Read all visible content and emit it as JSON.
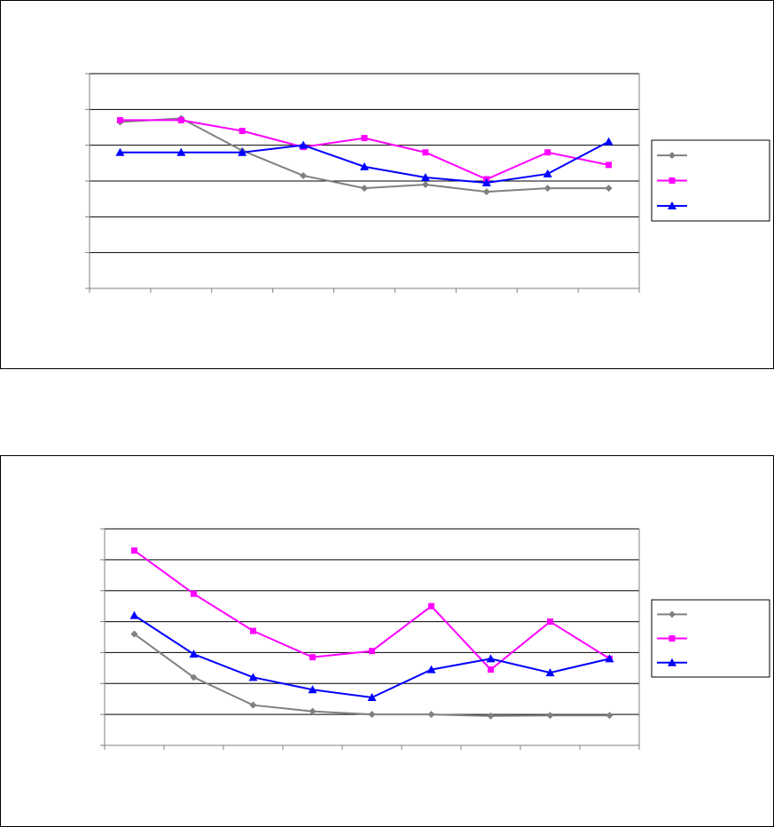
{
  "colors": {
    "series1": "#808080",
    "series2": "#ff00ff",
    "series3": "#0000ff",
    "gridline": "#000000",
    "axis": "#808080"
  },
  "chart_data": [
    {
      "type": "line",
      "title": "",
      "xlabel": "",
      "ylabel": "",
      "categories": [
        "",
        "",
        "",
        "",
        "",
        "",
        "",
        "",
        ""
      ],
      "ylim": [
        0,
        6
      ],
      "grid": true,
      "legend_position": "right",
      "series": [
        {
          "name": "",
          "marker": "diamond",
          "values": [
            4.65,
            4.75,
            3.85,
            3.15,
            2.8,
            2.9,
            2.7,
            2.8,
            2.8
          ]
        },
        {
          "name": "",
          "marker": "square",
          "values": [
            4.7,
            4.7,
            4.4,
            3.95,
            4.2,
            3.8,
            3.05,
            3.8,
            3.45
          ]
        },
        {
          "name": "",
          "marker": "triangle",
          "values": [
            3.8,
            3.8,
            3.8,
            4.0,
            3.4,
            3.1,
            2.95,
            3.2,
            4.1
          ]
        }
      ]
    },
    {
      "type": "line",
      "title": "",
      "xlabel": "",
      "ylabel": "",
      "categories": [
        "",
        "",
        "",
        "",
        "",
        "",
        "",
        "",
        ""
      ],
      "ylim": [
        0,
        7
      ],
      "grid": true,
      "legend_position": "right",
      "series": [
        {
          "name": "",
          "marker": "diamond",
          "values": [
            3.6,
            2.2,
            1.3,
            1.1,
            1.0,
            1.0,
            0.95,
            0.97,
            0.97
          ]
        },
        {
          "name": "",
          "marker": "square",
          "values": [
            6.3,
            4.9,
            3.7,
            2.85,
            3.05,
            4.5,
            2.45,
            4.0,
            2.8
          ]
        },
        {
          "name": "",
          "marker": "triangle",
          "values": [
            4.2,
            2.95,
            2.2,
            1.8,
            1.55,
            2.45,
            2.8,
            2.35,
            2.8
          ]
        }
      ]
    }
  ]
}
